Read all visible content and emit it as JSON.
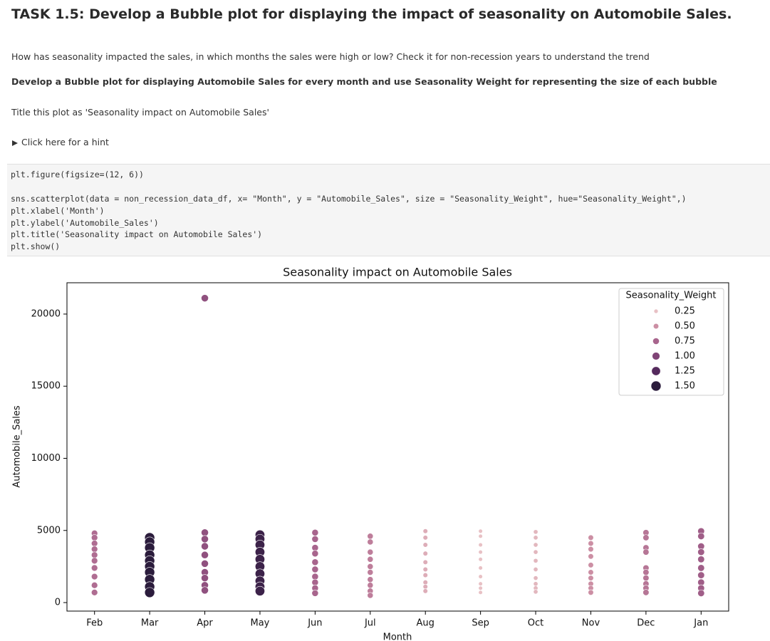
{
  "notebook": {
    "heading": "TASK 1.5: Develop a Bubble plot for displaying the impact of seasonality on Automobile Sales.",
    "question": "How has seasonality impacted the sales, in which months the sales were high or low? Check it for non-recession years to understand the trend",
    "instruction": "Develop a Bubble plot for displaying Automobile Sales for every month and use Seasonality Weight for representing the size of each bubble",
    "title_note": "Title this plot as 'Seasonality impact on Automobile Sales'",
    "hint": "Click here for a hint",
    "code_first": [
      "plt.figure(figsize=(12, 6))"
    ],
    "code_rest": [
      "sns.scatterplot(data = non_recession_data_df, x= \"Month\", y = \"Automobile_Sales\", size = \"Seasonality_Weight\", hue=\"Seasonality_Weight\",)",
      "plt.xlabel('Month')",
      "plt.ylabel('Automobile_Sales')",
      "plt.title('Seasonality impact on Automobile Sales')",
      "plt.show()"
    ]
  },
  "chart_data": {
    "type": "scatter",
    "title": "Seasonality impact on Automobile Sales",
    "x_label": "Month",
    "y_label": "Automobile_Sales",
    "categories": [
      "Feb",
      "Mar",
      "Apr",
      "May",
      "Jun",
      "Jul",
      "Aug",
      "Sep",
      "Oct",
      "Nov",
      "Dec",
      "Jan"
    ],
    "ylim": [
      -590,
      22170
    ],
    "yticks": [
      0,
      5000,
      10000,
      15000,
      20000
    ],
    "legend": {
      "title": "Seasonality_Weight",
      "position": "upper right",
      "entries": [
        0.25,
        {
          "value": 0.5,
          "label": "0.50"
        },
        0.75,
        {
          "value": 1,
          "label": "1.00"
        },
        1.25,
        {
          "value": 1.5,
          "label": "1.50"
        }
      ],
      "colors": [
        "#e8c1c5",
        "#cc8fa4",
        "#a8658d",
        "#804476",
        "#552a5d",
        "#2b1c3c"
      ]
    },
    "series": [
      {
        "weight": 0.7,
        "values": [
          4800,
          4500,
          4100,
          3700,
          3300,
          2900,
          2400,
          1800,
          1200,
          700
        ]
      },
      {
        "weight": 1.5,
        "values": [
          4500,
          4200,
          3800,
          3300,
          2900,
          2500,
          2100,
          1600,
          1100,
          700
        ]
      },
      {
        "weight": 0.9,
        "values": [
          21100,
          4850,
          4400,
          3900,
          3300,
          2700,
          2100,
          1700,
          1200,
          850
        ]
      },
      {
        "weight": 1.4,
        "values": [
          4700,
          4400,
          4000,
          3500,
          3000,
          2500,
          2000,
          1500,
          1100,
          800
        ]
      },
      {
        "weight": 0.75,
        "values": [
          4850,
          4400,
          3800,
          3400,
          2800,
          2300,
          1800,
          1400,
          1000,
          650
        ]
      },
      {
        "weight": 0.6,
        "values": [
          4600,
          4200,
          3500,
          3000,
          2500,
          2100,
          1600,
          1200,
          800,
          500
        ]
      },
      {
        "weight": 0.35,
        "values": [
          4950,
          4500,
          4000,
          3400,
          2800,
          2300,
          1900,
          1400,
          1100,
          800
        ]
      },
      {
        "weight": 0.2,
        "values": [
          4950,
          4600,
          4000,
          3500,
          3000,
          2400,
          1800,
          1300,
          1000,
          700
        ]
      },
      {
        "weight": 0.3,
        "values": [
          4900,
          4500,
          4000,
          3500,
          2900,
          2300,
          1700,
          1300,
          1000,
          750
        ]
      },
      {
        "weight": 0.5,
        "values": [
          4500,
          4100,
          3700,
          3200,
          2600,
          2100,
          1700,
          1300,
          1000,
          700
        ]
      },
      {
        "weight": 0.65,
        "values": [
          4850,
          4500,
          3800,
          3500,
          2400,
          2100,
          1700,
          1300,
          1000,
          700
        ]
      },
      {
        "weight": 0.8,
        "values": [
          4950,
          4600,
          3900,
          3500,
          3000,
          2400,
          1900,
          1400,
          1000,
          650
        ]
      }
    ]
  }
}
